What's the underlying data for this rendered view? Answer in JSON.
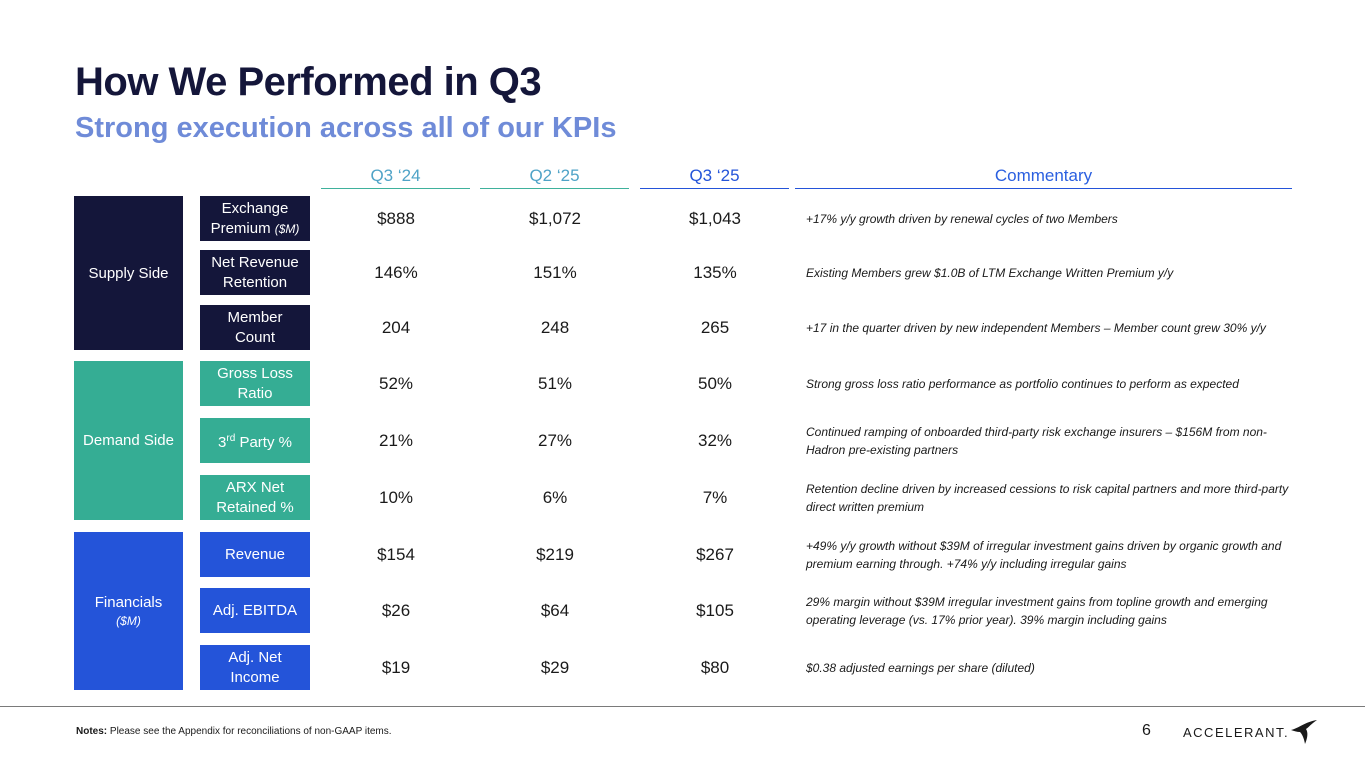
{
  "title": "How We Performed in Q3",
  "subtitle": "Strong execution across all of our KPIs",
  "columns": {
    "q3_24": "Q3 ‘24",
    "q2_25": "Q2 ‘25",
    "q3_25": "Q3 ‘25",
    "commentary": "Commentary"
  },
  "groups": {
    "supply": {
      "label": "Supply Side",
      "color": "#14163a"
    },
    "demand": {
      "label": "Demand Side",
      "color": "#35ad94"
    },
    "financials": {
      "label": "Financials",
      "sublabel": "($M)",
      "color": "#2454d9"
    }
  },
  "rows": [
    {
      "kpi": "Exchange",
      "kpi_line2": "Premium",
      "kpi_unit": "($M)",
      "q3_24": "$888",
      "q2_25": "$1,072",
      "q3_25": "$1,043",
      "commentary": "+17% y/y growth driven by renewal cycles of two Members"
    },
    {
      "kpi": "Net Revenue",
      "kpi_line2": "Retention",
      "q3_24": "146%",
      "q2_25": "151%",
      "q3_25": "135%",
      "commentary": "Existing Members grew $1.0B of LTM Exchange Written Premium y/y"
    },
    {
      "kpi": "Member",
      "kpi_line2": "Count",
      "q3_24": "204",
      "q2_25": "248",
      "q3_25": "265",
      "commentary": "+17 in the quarter driven by new independent Members – Member count grew 30% y/y"
    },
    {
      "kpi": "Gross Loss",
      "kpi_line2": "Ratio",
      "q3_24": "52%",
      "q2_25": "51%",
      "q3_25": "50%",
      "commentary": "Strong gross loss ratio performance as portfolio continues to perform as expected"
    },
    {
      "kpi": "3",
      "kpi_sup": "rd",
      "kpi_rest": " Party %",
      "q3_24": "21%",
      "q2_25": "27%",
      "q3_25": "32%",
      "commentary": "Continued ramping of onboarded third-party risk exchange insurers – $156M from non-Hadron pre-existing partners"
    },
    {
      "kpi": "ARX Net",
      "kpi_line2": "Retained %",
      "q3_24": "10%",
      "q2_25": "6%",
      "q3_25": "7%",
      "commentary": "Retention decline driven by increased cessions to risk capital partners and more third-party direct written premium"
    },
    {
      "kpi": "Revenue",
      "q3_24": "$154",
      "q2_25": "$219",
      "q3_25": "$267",
      "commentary": "+49% y/y growth without $39M of irregular investment gains driven by organic growth and premium earning through. +74% y/y including irregular gains"
    },
    {
      "kpi": "Adj. EBITDA",
      "q3_24": "$26",
      "q2_25": "$64",
      "q3_25": "$105",
      "commentary": "29% margin without $39M irregular investment gains from topline growth and emerging operating leverage (vs. 17% prior year). 39% margin including gains"
    },
    {
      "kpi": "Adj. Net",
      "kpi_line2": "Income",
      "q3_24": "$19",
      "q2_25": "$29",
      "q3_25": "$80",
      "commentary": "$0.38 adjusted earnings per share (diluted)"
    }
  ],
  "footer": {
    "notes_label": "Notes:",
    "notes_text": " Please see the Appendix for reconciliations of non-GAAP items.",
    "page_number": "6",
    "logo_text": "ACCELERANT."
  }
}
